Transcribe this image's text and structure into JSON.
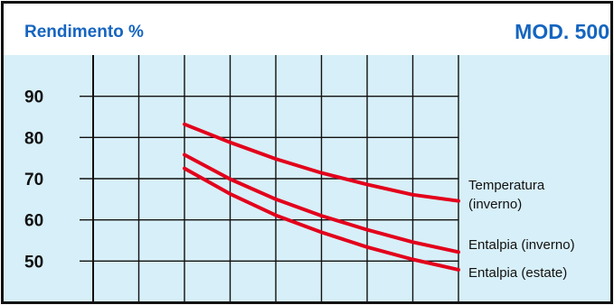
{
  "chart_data": {
    "type": "line",
    "title": "Rendimento %",
    "model": "MOD. 500",
    "ylabel": "Rendimento %",
    "xlabel": "",
    "ylim": [
      40,
      100
    ],
    "y_ticks": [
      90,
      80,
      70,
      60,
      50
    ],
    "x_range": [
      0,
      8
    ],
    "grid": true,
    "colors": {
      "line": "#e3001b",
      "frame": "#111111",
      "plot_background": "#d7eff8",
      "header_background": "#ffffff",
      "title": "#1565c0"
    },
    "series": [
      {
        "id": "temperatura-inverno",
        "name": "Temperatura (inverno)",
        "label_lines": [
          "Temperatura",
          "(inverno)"
        ],
        "x": [
          2,
          3,
          4,
          5,
          6,
          7,
          8
        ],
        "y": [
          83.2,
          78.8,
          74.8,
          71.4,
          68.6,
          66.1,
          64.6
        ]
      },
      {
        "id": "entalpia-inverno",
        "name": "Entalpia (inverno)",
        "label_lines": [
          "Entalpia (inverno)"
        ],
        "x": [
          2,
          3,
          4,
          5,
          6,
          7,
          8
        ],
        "y": [
          75.8,
          69.9,
          65.0,
          61.0,
          57.6,
          54.6,
          52.2
        ]
      },
      {
        "id": "entalpia-estate",
        "name": "Entalpia (estate)",
        "label_lines": [
          "Entalpia (estate)"
        ],
        "x": [
          2,
          3,
          4,
          5,
          6,
          7,
          8
        ],
        "y": [
          72.5,
          66.3,
          61.1,
          57.0,
          53.4,
          50.4,
          47.9
        ]
      }
    ]
  }
}
